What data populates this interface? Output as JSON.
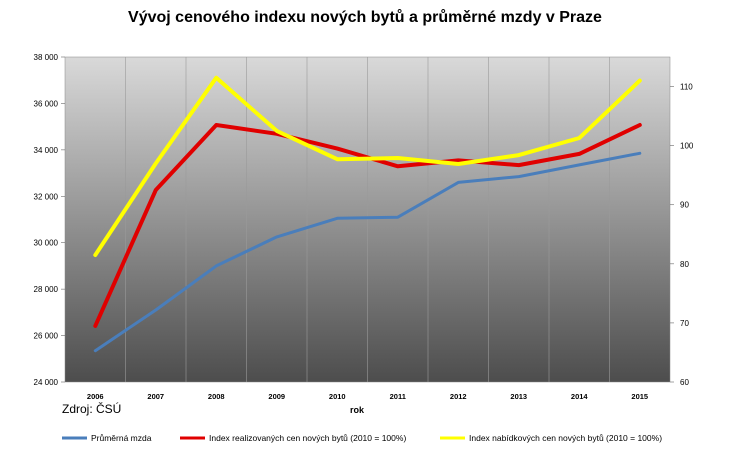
{
  "chart_data": {
    "type": "line",
    "title": "Vývoj cenového indexu nových bytů a průměrné mzdy v Praze",
    "xlabel": "rok",
    "source": "Zdroj: ČSÚ",
    "categories": [
      "2006",
      "2007",
      "2008",
      "2009",
      "2010",
      "2011",
      "2012",
      "2013",
      "2014",
      "2015"
    ],
    "y_left": {
      "min": 24000,
      "max": 38000,
      "step": 2000,
      "tick_labels": [
        "24 000",
        "26 000",
        "28 000",
        "30 000",
        "32 000",
        "34 000",
        "36 000",
        "38 000"
      ]
    },
    "y_right": {
      "min": 60,
      "max": 115,
      "step": 10,
      "tick_labels": [
        "60",
        "70",
        "80",
        "90",
        "100",
        "110"
      ]
    },
    "series": [
      {
        "name": "Průměrná mzda",
        "axis": "left",
        "color": "#4a7ebb",
        "values": [
          25350,
          27100,
          29000,
          30250,
          31050,
          31100,
          32600,
          32850,
          33350,
          33850
        ]
      },
      {
        "name": "Index realizovaných cen nových bytů (2010 = 100%)",
        "axis": "right",
        "color": "#e00000",
        "values": [
          69.5,
          92.5,
          103.5,
          102,
          99.5,
          96.5,
          97.5,
          96.7,
          98.6,
          103.5
        ]
      },
      {
        "name": "Index nabídkových cen nových bytů (2010 = 100%)",
        "axis": "right",
        "color": "#ffff00",
        "values": [
          81.5,
          97,
          111.5,
          102.5,
          97.7,
          97.9,
          96.9,
          98.4,
          101.3,
          111
        ]
      }
    ],
    "grid": "vertical",
    "legend_position": "bottom"
  }
}
